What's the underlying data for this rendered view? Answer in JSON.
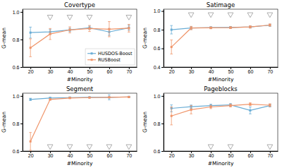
{
  "chart_data": [
    {
      "type": "line",
      "title": "Covertype",
      "xlabel": "#Minority",
      "ylabel": "G-mean",
      "x": [
        20,
        30,
        40,
        50,
        60,
        70
      ],
      "series": [
        {
          "name": "HUSDOS-Boost",
          "color": "#6aadd5",
          "marker": "square",
          "values": [
            0.85,
            0.855,
            0.87,
            0.885,
            0.855,
            0.885
          ],
          "errors": [
            0.04,
            0.018,
            0.012,
            0.012,
            0.025,
            0.018
          ]
        },
        {
          "name": "RUSBoost",
          "color": "#f0956a",
          "marker": "square",
          "values": [
            0.74,
            0.84,
            0.87,
            0.88,
            0.875,
            0.882
          ],
          "errors": [
            0.065,
            0.04,
            0.022,
            0.022,
            0.055,
            0.028
          ]
        }
      ],
      "triangles": [
        {
          "x": 30,
          "y": 0.965
        },
        {
          "x": 40,
          "y": 0.965
        },
        {
          "x": 50,
          "y": 0.965
        },
        {
          "x": 70,
          "y": 0.965
        }
      ],
      "xlim": [
        16,
        74
      ],
      "xticks": [
        20,
        30,
        40,
        50,
        60,
        70
      ],
      "ylim": [
        0.6,
        1.02
      ],
      "yticks": [
        0.6,
        0.8,
        {
          "value": 1.0,
          "label": "1.0"
        }
      ],
      "grid": false,
      "legend": "lower right"
    },
    {
      "type": "line",
      "title": "Satimage",
      "xlabel": "#Minority",
      "ylabel": "G-mean",
      "x": [
        20,
        30,
        40,
        50,
        60,
        70
      ],
      "series": [
        {
          "name": "HUSDOS-Boost",
          "color": "#6aadd5",
          "marker": "square",
          "values": [
            0.8,
            0.818,
            0.822,
            0.825,
            0.83,
            0.848
          ],
          "errors": [
            0.045,
            0.015,
            0.01,
            0.01,
            0.012,
            0.012
          ]
        },
        {
          "name": "RUSBoost",
          "color": "#f0956a",
          "marker": "square",
          "values": [
            0.615,
            0.818,
            0.82,
            0.822,
            0.83,
            0.85
          ],
          "errors": [
            0.075,
            0.018,
            0.01,
            0.01,
            0.012,
            0.012
          ]
        }
      ],
      "triangles": [
        {
          "x": 30,
          "y": 0.965
        },
        {
          "x": 40,
          "y": 0.965
        },
        {
          "x": 50,
          "y": 0.965
        },
        {
          "x": 60,
          "y": 0.965
        },
        {
          "x": 70,
          "y": 0.965
        }
      ],
      "xlim": [
        16,
        74
      ],
      "xticks": [
        20,
        30,
        40,
        50,
        60,
        70
      ],
      "ylim": [
        0.4,
        1.02
      ],
      "yticks": [
        0.4,
        0.6,
        0.8,
        {
          "value": 1.0,
          "label": "1.0"
        }
      ],
      "grid": false
    },
    {
      "type": "line",
      "title": "Segment",
      "xlabel": "#Minority",
      "ylabel": "G-mean",
      "x": [
        20,
        30,
        40,
        50,
        60,
        70
      ],
      "series": [
        {
          "name": "HUSDOS-Boost",
          "color": "#6aadd5",
          "marker": "square",
          "values": [
            0.975,
            0.985,
            0.988,
            0.99,
            0.99,
            0.993
          ],
          "errors": [
            0.008,
            0.005,
            0.004,
            0.003,
            0.018,
            0.003
          ]
        },
        {
          "name": "RUSBoost",
          "color": "#f0956a",
          "marker": "square",
          "values": [
            0.67,
            0.975,
            0.985,
            0.988,
            0.99,
            0.992
          ],
          "errors": [
            0.065,
            0.006,
            0.004,
            0.003,
            0.003,
            0.003
          ]
        }
      ],
      "triangles": [
        {
          "x": 30,
          "y": 0.635
        },
        {
          "x": 40,
          "y": 0.635
        },
        {
          "x": 50,
          "y": 0.635
        },
        {
          "x": 60,
          "y": 0.635
        },
        {
          "x": 70,
          "y": 0.635
        }
      ],
      "xlim": [
        16,
        74
      ],
      "xticks": [
        20,
        30,
        40,
        50,
        60,
        70
      ],
      "ylim": [
        0.6,
        1.02
      ],
      "yticks": [
        0.6,
        0.8,
        {
          "value": 1.0,
          "label": "1.0"
        }
      ],
      "grid": false
    },
    {
      "type": "line",
      "title": "Pageblocks",
      "xlabel": "#Minority",
      "ylabel": "G-mean",
      "x": [
        20,
        30,
        40,
        50,
        60,
        70
      ],
      "series": [
        {
          "name": "HUSDOS-Boost",
          "color": "#6aadd5",
          "marker": "square",
          "values": [
            0.91,
            0.922,
            0.93,
            0.935,
            0.895,
            0.93
          ],
          "errors": [
            0.025,
            0.012,
            0.01,
            0.01,
            0.025,
            0.01
          ]
        },
        {
          "name": "RUSBoost",
          "color": "#f0956a",
          "marker": "square",
          "values": [
            0.855,
            0.9,
            0.92,
            0.93,
            0.94,
            0.933
          ],
          "errors": [
            0.065,
            0.03,
            0.012,
            0.01,
            0.01,
            0.01
          ]
        }
      ],
      "triangles": [
        {
          "x": 40,
          "y": 0.635
        },
        {
          "x": 50,
          "y": 0.635
        },
        {
          "x": 70,
          "y": 0.635
        }
      ],
      "xlim": [
        16,
        74
      ],
      "xticks": [
        20,
        30,
        40,
        50,
        60,
        70
      ],
      "ylim": [
        0.6,
        1.02
      ],
      "yticks": [
        0.6,
        0.8,
        {
          "value": 1.0,
          "label": "1.0"
        }
      ],
      "grid": false
    }
  ]
}
